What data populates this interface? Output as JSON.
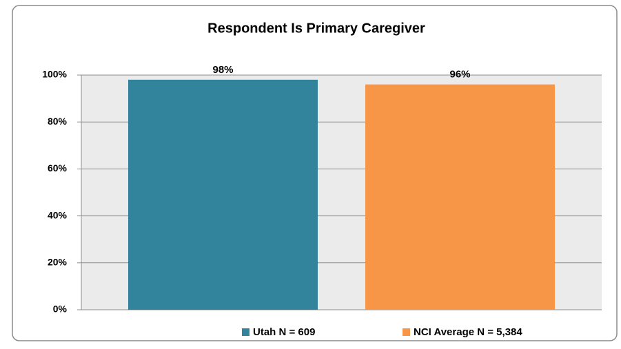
{
  "chart_data": {
    "type": "bar",
    "title": "Respondent Is Primary Caregiver",
    "categories": [
      null
    ],
    "series": [
      {
        "name": "Utah N = 609",
        "color": "#31849b",
        "values": [
          98
        ],
        "value_labels": [
          "98%"
        ]
      },
      {
        "name": "NCI Average N = 5,384",
        "color": "#f79646",
        "values": [
          96
        ],
        "value_labels": [
          "96%"
        ]
      }
    ],
    "ylim": [
      0,
      100
    ],
    "yticks": [
      {
        "value": 0,
        "label": "0%"
      },
      {
        "value": 20,
        "label": "20%"
      },
      {
        "value": 40,
        "label": "40%"
      },
      {
        "value": 60,
        "label": "60%"
      },
      {
        "value": 80,
        "label": "80%"
      },
      {
        "value": 100,
        "label": "100%"
      }
    ],
    "grid": true,
    "legend": "bottom"
  }
}
